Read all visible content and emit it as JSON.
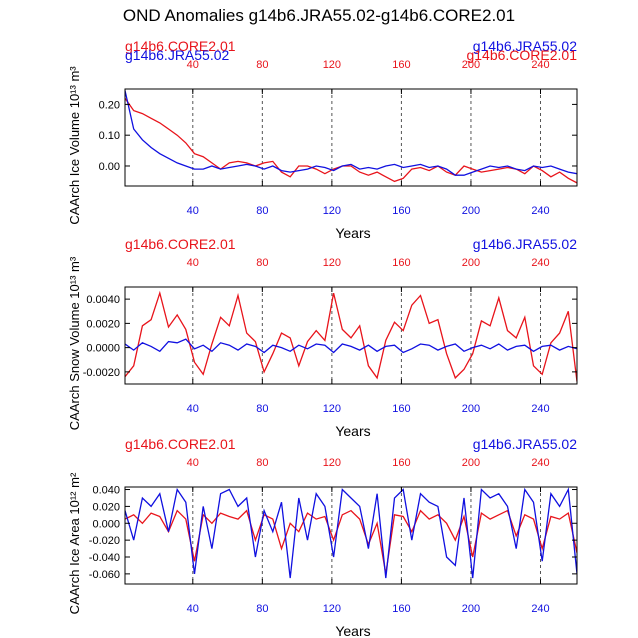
{
  "title": "OND Anomalies g14b6.JRA55.02-g14b6.CORE2.01",
  "colors": {
    "core": "#e8141b",
    "jra": "#1010e0",
    "axis": "#000000",
    "grid": "#555555"
  },
  "chart_data": [
    {
      "type": "line",
      "ylabel": "CAArch Ice Volume 10¹³ m³",
      "xlabel": "Years",
      "top_left_label": "g14b6.CORE2.01",
      "top_left_overlap_label": "g14b6.JRA55.02",
      "top_right_label": "g14b6.JRA55.02",
      "top_right_overlap_label": "g14b6.CORE2.01",
      "xlim": [
        1,
        261
      ],
      "ylim": [
        -0.065,
        0.25
      ],
      "xticks": [
        40,
        80,
        120,
        160,
        200,
        240
      ],
      "yticks": [
        0.2,
        0.1,
        0.0
      ],
      "ytick_labels": [
        "0.20",
        "0.10",
        "0.00"
      ],
      "series": [
        {
          "name": "g14b6.CORE2.01",
          "color": "#e8141b",
          "x": [
            1,
            6,
            11,
            16,
            21,
            26,
            31,
            36,
            41,
            46,
            51,
            56,
            61,
            66,
            71,
            76,
            81,
            86,
            91,
            96,
            101,
            106,
            111,
            116,
            121,
            126,
            131,
            136,
            141,
            146,
            151,
            156,
            161,
            166,
            171,
            176,
            181,
            186,
            191,
            196,
            201,
            206,
            211,
            216,
            221,
            226,
            231,
            236,
            241,
            246,
            251,
            256,
            261
          ],
          "values": [
            0.22,
            0.18,
            0.17,
            0.155,
            0.14,
            0.12,
            0.1,
            0.075,
            0.04,
            0.03,
            0.01,
            -0.01,
            0.01,
            0.015,
            0.01,
            0.0,
            0.01,
            0.015,
            -0.02,
            -0.035,
            0.0,
            0.0,
            -0.01,
            -0.025,
            -0.01,
            0.0,
            0.0,
            -0.02,
            -0.03,
            -0.02,
            -0.035,
            -0.05,
            -0.04,
            -0.01,
            -0.005,
            -0.015,
            0.0,
            -0.02,
            -0.03,
            0.0,
            -0.01,
            -0.02,
            -0.015,
            -0.01,
            -0.005,
            -0.01,
            -0.025,
            0.0,
            -0.015,
            -0.035,
            -0.02,
            -0.04,
            -0.055
          ]
        },
        {
          "name": "g14b6.JRA55.02",
          "color": "#1010e0",
          "x": [
            1,
            6,
            11,
            16,
            21,
            26,
            31,
            36,
            41,
            46,
            51,
            56,
            61,
            66,
            71,
            76,
            81,
            86,
            91,
            96,
            101,
            106,
            111,
            116,
            121,
            126,
            131,
            136,
            141,
            146,
            151,
            156,
            161,
            166,
            171,
            176,
            181,
            186,
            191,
            196,
            201,
            206,
            211,
            216,
            221,
            226,
            231,
            236,
            241,
            246,
            251,
            256,
            261
          ],
          "values": [
            0.245,
            0.12,
            0.085,
            0.06,
            0.04,
            0.025,
            0.01,
            0.0,
            -0.01,
            -0.01,
            0.0,
            -0.01,
            -0.005,
            0.0,
            0.005,
            0.0,
            -0.01,
            0.0,
            -0.015,
            -0.02,
            -0.015,
            -0.01,
            0.0,
            -0.005,
            -0.015,
            0.0,
            0.005,
            -0.01,
            -0.005,
            -0.01,
            0.0,
            0.005,
            -0.005,
            0.0,
            0.005,
            -0.005,
            0.0,
            -0.01,
            -0.03,
            -0.03,
            -0.02,
            -0.01,
            0.0,
            -0.005,
            0.0,
            -0.01,
            -0.015,
            0.0,
            -0.005,
            0.0,
            -0.01,
            -0.02,
            -0.025
          ]
        }
      ]
    },
    {
      "type": "line",
      "ylabel": "CAArch Snow Volume 10¹³ m³",
      "xlabel": "Years",
      "top_left_label": "g14b6.CORE2.01",
      "top_right_label": "g14b6.JRA55.02",
      "xlim": [
        1,
        261
      ],
      "ylim": [
        -0.003,
        0.005
      ],
      "xticks": [
        40,
        80,
        120,
        160,
        200,
        240
      ],
      "yticks": [
        0.004,
        0.002,
        0.0,
        -0.002
      ],
      "ytick_labels": [
        "0.0040",
        "0.0020",
        "0.0000",
        "-0.0020"
      ],
      "series": [
        {
          "name": "g14b6.CORE2.01",
          "color": "#e8141b",
          "x": [
            1,
            6,
            11,
            16,
            21,
            26,
            31,
            36,
            41,
            46,
            51,
            56,
            61,
            66,
            71,
            76,
            81,
            86,
            91,
            96,
            101,
            106,
            111,
            116,
            121,
            126,
            131,
            136,
            141,
            146,
            151,
            156,
            161,
            166,
            171,
            176,
            181,
            186,
            191,
            196,
            201,
            206,
            211,
            216,
            221,
            226,
            231,
            236,
            241,
            246,
            251,
            256,
            261
          ],
          "values": [
            -0.0024,
            -0.0015,
            0.0018,
            0.0023,
            0.0045,
            0.0017,
            0.0027,
            0.0015,
            -0.0012,
            -0.0022,
            0.0003,
            0.0025,
            0.0018,
            0.0043,
            0.0012,
            0.0005,
            -0.002,
            -0.0005,
            0.0012,
            0.0008,
            -0.0015,
            0.0005,
            0.0014,
            0.0006,
            0.0045,
            0.0015,
            0.0008,
            0.0018,
            -0.0015,
            -0.0025,
            0.0006,
            0.0021,
            0.0014,
            0.0035,
            0.0043,
            0.002,
            0.0023,
            -0.0005,
            -0.0025,
            -0.0018,
            -0.0005,
            0.0022,
            0.0018,
            0.0041,
            0.0014,
            0.0008,
            0.0025,
            -0.0015,
            -0.0022,
            0.0004,
            0.0012,
            0.003,
            -0.0028
          ]
        },
        {
          "name": "g14b6.JRA55.02",
          "color": "#1010e0",
          "x": [
            1,
            6,
            11,
            16,
            21,
            26,
            31,
            36,
            41,
            46,
            51,
            56,
            61,
            66,
            71,
            76,
            81,
            86,
            91,
            96,
            101,
            106,
            111,
            116,
            121,
            126,
            131,
            136,
            141,
            146,
            151,
            156,
            161,
            166,
            171,
            176,
            181,
            186,
            191,
            196,
            201,
            206,
            211,
            216,
            221,
            226,
            231,
            236,
            241,
            246,
            251,
            256,
            261
          ],
          "values": [
            0.0003,
            -0.0002,
            0.0004,
            0.0001,
            -0.0003,
            0.0005,
            0.0004,
            0.0007,
            -0.0001,
            0.0002,
            -0.0003,
            0.0004,
            0.0002,
            -0.0002,
            0.0003,
            0.0001,
            -0.0004,
            0.0002,
            0.0,
            -0.0003,
            0.0002,
            -0.0001,
            0.0003,
            0.0002,
            -0.0004,
            0.0003,
            0.0001,
            -0.0002,
            0.0002,
            -0.0003,
            0.0001,
            0.0002,
            -0.0004,
            -0.0001,
            0.0003,
            0.0002,
            -0.0002,
            0.0001,
            0.0003,
            -0.0003,
            0.0,
            0.0002,
            -0.0001,
            0.0003,
            -0.0002,
            0.0001,
            0.0002,
            -0.0003,
            0.0001,
            0.0002,
            -0.0002,
            0.0001,
            -0.0001
          ]
        }
      ]
    },
    {
      "type": "line",
      "ylabel": "CAArch Ice Area 10¹² m²",
      "xlabel": "Years",
      "top_left_label": "g14b6.CORE2.01",
      "top_right_label": "g14b6.JRA55.02",
      "xlim": [
        1,
        261
      ],
      "ylim": [
        -0.072,
        0.043
      ],
      "xticks": [
        40,
        80,
        120,
        160,
        200,
        240
      ],
      "yticks": [
        0.04,
        0.02,
        0.0,
        -0.02,
        -0.04,
        -0.06
      ],
      "ytick_labels": [
        "0.040",
        "0.020",
        "0.000",
        "-0.020",
        "-0.040",
        "-0.060"
      ],
      "series": [
        {
          "name": "g14b6.CORE2.01",
          "color": "#e8141b",
          "x": [
            1,
            6,
            11,
            16,
            21,
            26,
            31,
            36,
            41,
            46,
            51,
            56,
            61,
            66,
            71,
            76,
            81,
            86,
            91,
            96,
            101,
            106,
            111,
            116,
            121,
            126,
            131,
            136,
            141,
            146,
            151,
            156,
            161,
            166,
            171,
            176,
            181,
            186,
            191,
            196,
            201,
            206,
            211,
            216,
            221,
            226,
            231,
            236,
            241,
            246,
            251,
            256,
            261
          ],
          "values": [
            0.005,
            0.01,
            0.0,
            0.012,
            0.008,
            -0.01,
            0.015,
            0.005,
            -0.045,
            0.01,
            0.0,
            0.012,
            0.008,
            0.005,
            0.015,
            -0.02,
            0.01,
            0.005,
            -0.03,
            0.0,
            -0.01,
            0.012,
            0.005,
            0.008,
            -0.02,
            0.01,
            0.015,
            0.005,
            -0.025,
            0.0,
            -0.06,
            0.01,
            0.008,
            -0.01,
            0.015,
            0.005,
            0.01,
            0.0,
            -0.02,
            0.008,
            -0.04,
            0.012,
            0.005,
            0.01,
            0.015,
            -0.015,
            0.01,
            0.005,
            -0.03,
            0.008,
            0.005,
            0.012,
            -0.035
          ]
        },
        {
          "name": "g14b6.JRA55.02",
          "color": "#1010e0",
          "x": [
            1,
            6,
            11,
            16,
            21,
            26,
            31,
            36,
            41,
            46,
            51,
            56,
            61,
            66,
            71,
            76,
            81,
            86,
            91,
            96,
            101,
            106,
            111,
            116,
            121,
            126,
            131,
            136,
            141,
            146,
            151,
            156,
            161,
            166,
            171,
            176,
            181,
            186,
            191,
            196,
            201,
            206,
            211,
            216,
            221,
            226,
            231,
            236,
            241,
            246,
            251,
            256,
            261
          ],
          "values": [
            0.015,
            -0.02,
            0.03,
            0.02,
            0.035,
            -0.01,
            0.04,
            0.025,
            -0.06,
            0.02,
            -0.03,
            0.035,
            0.04,
            0.02,
            0.03,
            -0.04,
            0.015,
            -0.01,
            0.025,
            -0.065,
            0.03,
            -0.02,
            0.035,
            0.02,
            -0.04,
            0.04,
            0.03,
            0.02,
            -0.03,
            0.035,
            -0.065,
            0.03,
            0.04,
            -0.02,
            0.035,
            0.025,
            0.02,
            -0.04,
            -0.05,
            0.03,
            -0.065,
            0.04,
            0.03,
            0.035,
            0.02,
            -0.03,
            0.04,
            0.025,
            -0.045,
            0.035,
            0.02,
            0.04,
            -0.06
          ]
        }
      ]
    }
  ]
}
